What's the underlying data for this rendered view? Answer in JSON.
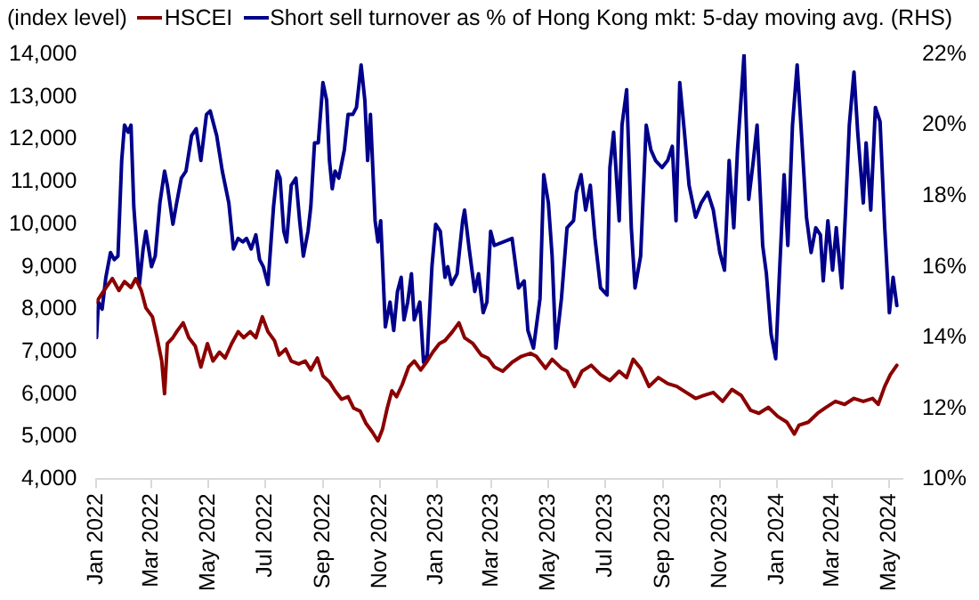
{
  "chart_data": {
    "type": "line",
    "ylabel": "(index level)",
    "legend": "top",
    "grid": false,
    "marker": "none",
    "line_style": "solid",
    "xlim": [
      "2022-01-01",
      "2024-05-15"
    ],
    "xticks": [
      {
        "value": "2022-01",
        "label": "Jan 2022"
      },
      {
        "value": "2022-03",
        "label": "Mar 2022"
      },
      {
        "value": "2022-05",
        "label": "May 2022"
      },
      {
        "value": "2022-07",
        "label": "Jul 2022"
      },
      {
        "value": "2022-09",
        "label": "Sep 2022"
      },
      {
        "value": "2022-11",
        "label": "Nov 2022"
      },
      {
        "value": "2023-01",
        "label": "Jan 2023"
      },
      {
        "value": "2023-03",
        "label": "Mar 2023"
      },
      {
        "value": "2023-05",
        "label": "May 2023"
      },
      {
        "value": "2023-07",
        "label": "Jul 2023"
      },
      {
        "value": "2023-09",
        "label": "Sep 2023"
      },
      {
        "value": "2023-11",
        "label": "Nov 2023"
      },
      {
        "value": "2024-01",
        "label": "Jan 2024"
      },
      {
        "value": "2024-03",
        "label": "Mar 2024"
      },
      {
        "value": "2024-05",
        "label": "May 2024"
      }
    ],
    "ylim": [
      4000,
      14000
    ],
    "yticks": [
      {
        "value": 4000,
        "label": "4,000"
      },
      {
        "value": 5000,
        "label": "5,000"
      },
      {
        "value": 6000,
        "label": "6,000"
      },
      {
        "value": 7000,
        "label": "7,000"
      },
      {
        "value": 8000,
        "label": "8,000"
      },
      {
        "value": 9000,
        "label": "9,000"
      },
      {
        "value": 10000,
        "label": "10,000"
      },
      {
        "value": 11000,
        "label": "11,000"
      },
      {
        "value": 12000,
        "label": "12,000"
      },
      {
        "value": 13000,
        "label": "13,000"
      },
      {
        "value": 14000,
        "label": "14,000"
      }
    ],
    "y2lim": [
      10,
      22
    ],
    "y2ticks": [
      {
        "value": 10,
        "label": "10%"
      },
      {
        "value": 12,
        "label": "12%"
      },
      {
        "value": 14,
        "label": "14%"
      },
      {
        "value": 16,
        "label": "16%"
      },
      {
        "value": 18,
        "label": "18%"
      },
      {
        "value": 20,
        "label": "20%"
      },
      {
        "value": 22,
        "label": "22%"
      }
    ],
    "series": [
      {
        "name": "HSCEI",
        "color": "#8b0000",
        "x": [
          "2022-01-01",
          "2022-01-09",
          "2022-01-18",
          "2022-01-25",
          "2022-01-31",
          "2022-02-07",
          "2022-02-12",
          "2022-02-18",
          "2022-02-23",
          "2022-03-02",
          "2022-03-07",
          "2022-03-12",
          "2022-03-15",
          "2022-03-18",
          "2022-03-24",
          "2022-03-28",
          "2022-04-04",
          "2022-04-10",
          "2022-04-17",
          "2022-04-23",
          "2022-04-30",
          "2022-05-06",
          "2022-05-13",
          "2022-05-19",
          "2022-05-26",
          "2022-06-02",
          "2022-06-08",
          "2022-06-15",
          "2022-06-21",
          "2022-06-28",
          "2022-07-04",
          "2022-07-11",
          "2022-07-16",
          "2022-07-23",
          "2022-07-29",
          "2022-08-06",
          "2022-08-13",
          "2022-08-19",
          "2022-08-26",
          "2022-09-01",
          "2022-09-08",
          "2022-09-14",
          "2022-09-21",
          "2022-09-28",
          "2022-10-04",
          "2022-10-11",
          "2022-10-17",
          "2022-10-24",
          "2022-10-30",
          "2022-11-04",
          "2022-11-09",
          "2022-11-14",
          "2022-11-19",
          "2022-11-25",
          "2022-12-02",
          "2022-12-08",
          "2022-12-15",
          "2022-12-22",
          "2022-12-28",
          "2023-01-04",
          "2023-01-10",
          "2023-01-18",
          "2023-01-25",
          "2023-01-31",
          "2023-02-09",
          "2023-02-18",
          "2023-02-25",
          "2023-03-04",
          "2023-03-13",
          "2023-03-23",
          "2023-04-02",
          "2023-04-12",
          "2023-04-18",
          "2023-04-28",
          "2023-05-05",
          "2023-05-15",
          "2023-05-21",
          "2023-05-29",
          "2023-06-06",
          "2023-06-16",
          "2023-06-26",
          "2023-07-06",
          "2023-07-16",
          "2023-07-24",
          "2023-07-31",
          "2023-08-08",
          "2023-08-17",
          "2023-08-27",
          "2023-09-06",
          "2023-09-16",
          "2023-09-26",
          "2023-10-06",
          "2023-10-15",
          "2023-10-25",
          "2023-11-04",
          "2023-11-14",
          "2023-11-24",
          "2023-12-04",
          "2023-12-13",
          "2023-12-23",
          "2024-01-02",
          "2024-01-12",
          "2024-01-20",
          "2024-01-25",
          "2024-02-04",
          "2024-02-14",
          "2024-02-23",
          "2024-03-04",
          "2024-03-14",
          "2024-03-24",
          "2024-04-03",
          "2024-04-13",
          "2024-04-19",
          "2024-04-26",
          "2024-05-02",
          "2024-05-09"
        ],
        "values": [
          8170,
          8440,
          8720,
          8440,
          8650,
          8510,
          8720,
          8440,
          8030,
          7820,
          7330,
          6780,
          6010,
          7190,
          7330,
          7470,
          7680,
          7330,
          7130,
          6640,
          7190,
          6780,
          6990,
          6850,
          7190,
          7470,
          7330,
          7470,
          7330,
          7820,
          7470,
          7260,
          6920,
          7060,
          6780,
          6710,
          6780,
          6570,
          6850,
          6430,
          6290,
          6080,
          5880,
          5940,
          5670,
          5600,
          5320,
          5110,
          4900,
          5180,
          5670,
          6080,
          5940,
          6220,
          6640,
          6780,
          6570,
          6780,
          6990,
          7190,
          7260,
          7470,
          7680,
          7330,
          7190,
          6920,
          6850,
          6640,
          6540,
          6750,
          6890,
          6960,
          6890,
          6610,
          6820,
          6610,
          6540,
          6180,
          6540,
          6680,
          6460,
          6320,
          6540,
          6390,
          6820,
          6610,
          6180,
          6390,
          6250,
          6180,
          6040,
          5900,
          5970,
          6040,
          5830,
          6110,
          5970,
          5620,
          5550,
          5690,
          5480,
          5340,
          5060,
          5270,
          5340,
          5550,
          5690,
          5830,
          5760,
          5900,
          5830,
          5900,
          5760,
          6180,
          6460,
          6680
        ]
      },
      {
        "name": "Short sell turnover as % of Hong Kong mkt: 5-day moving avg. (RHS)",
        "color": "#00008b",
        "axis": "y2",
        "x": [
          "2022-01-01",
          "2022-01-03",
          "2022-01-07",
          "2022-01-11",
          "2022-01-16",
          "2022-01-20",
          "2022-01-24",
          "2022-01-28",
          "2022-01-31",
          "2022-02-04",
          "2022-02-07",
          "2022-02-10",
          "2022-02-16",
          "2022-02-20",
          "2022-02-23",
          "2022-03-01",
          "2022-03-05",
          "2022-03-10",
          "2022-03-15",
          "2022-03-18",
          "2022-03-24",
          "2022-03-28",
          "2022-04-02",
          "2022-04-07",
          "2022-04-13",
          "2022-04-18",
          "2022-04-23",
          "2022-04-29",
          "2022-05-03",
          "2022-05-10",
          "2022-05-16",
          "2022-05-23",
          "2022-05-28",
          "2022-06-02",
          "2022-06-07",
          "2022-06-11",
          "2022-06-16",
          "2022-06-21",
          "2022-06-25",
          "2022-06-29",
          "2022-07-04",
          "2022-07-10",
          "2022-07-14",
          "2022-07-17",
          "2022-07-21",
          "2022-07-24",
          "2022-07-29",
          "2022-08-03",
          "2022-08-07",
          "2022-08-11",
          "2022-08-16",
          "2022-08-19",
          "2022-08-23",
          "2022-08-27",
          "2022-09-01",
          "2022-09-05",
          "2022-09-08",
          "2022-09-11",
          "2022-09-14",
          "2022-09-18",
          "2022-09-24",
          "2022-09-28",
          "2022-10-03",
          "2022-10-07",
          "2022-10-12",
          "2022-10-16",
          "2022-10-19",
          "2022-10-22",
          "2022-10-27",
          "2022-10-30",
          "2022-11-02",
          "2022-11-07",
          "2022-11-12",
          "2022-11-16",
          "2022-11-20",
          "2022-11-24",
          "2022-11-27",
          "2022-12-01",
          "2022-12-05",
          "2022-12-08",
          "2022-12-14",
          "2022-12-18",
          "2022-12-22",
          "2022-12-27",
          "2022-12-31",
          "2023-01-05",
          "2023-01-10",
          "2023-01-13",
          "2023-01-17",
          "2023-01-23",
          "2023-01-29",
          "2023-01-31",
          "2023-02-05",
          "2023-02-11",
          "2023-02-15",
          "2023-02-20",
          "2023-02-24",
          "2023-02-28",
          "2023-03-04",
          "2023-03-23",
          "2023-03-30",
          "2023-04-05",
          "2023-04-09",
          "2023-04-15",
          "2023-04-22",
          "2023-04-26",
          "2023-05-01",
          "2023-05-05",
          "2023-05-09",
          "2023-05-15",
          "2023-05-21",
          "2023-05-28",
          "2023-05-31",
          "2023-06-05",
          "2023-06-10",
          "2023-06-15",
          "2023-06-20",
          "2023-06-26",
          "2023-07-03",
          "2023-07-06",
          "2023-07-10",
          "2023-07-16",
          "2023-07-19",
          "2023-07-24",
          "2023-07-29",
          "2023-08-02",
          "2023-08-08",
          "2023-08-14",
          "2023-08-19",
          "2023-08-24",
          "2023-08-31",
          "2023-09-06",
          "2023-09-11",
          "2023-09-15",
          "2023-09-19",
          "2023-09-24",
          "2023-09-29",
          "2023-10-06",
          "2023-10-12",
          "2023-10-19",
          "2023-10-25",
          "2023-11-01",
          "2023-11-06",
          "2023-11-11",
          "2023-11-16",
          "2023-11-20",
          "2023-11-25",
          "2023-11-27",
          "2023-12-02",
          "2023-12-07",
          "2023-12-11",
          "2023-12-17",
          "2023-12-21",
          "2023-12-26",
          "2023-12-31",
          "2024-01-04",
          "2024-01-09",
          "2024-01-13",
          "2024-01-18",
          "2024-01-23",
          "2024-01-28",
          "2024-02-02",
          "2024-02-07",
          "2024-02-12",
          "2024-02-17",
          "2024-02-20",
          "2024-02-25",
          "2024-03-01",
          "2024-03-05",
          "2024-03-11",
          "2024-03-15",
          "2024-03-19",
          "2024-03-24",
          "2024-03-28",
          "2024-04-03",
          "2024-04-06",
          "2024-04-11",
          "2024-04-16",
          "2024-04-21",
          "2024-04-26",
          "2024-05-01",
          "2024-05-05",
          "2024-05-09"
        ],
        "values": [
          14.0,
          15.0,
          14.8,
          15.7,
          16.4,
          16.2,
          16.3,
          19.0,
          20.0,
          19.8,
          20.0,
          17.7,
          15.5,
          16.5,
          17.0,
          16.0,
          16.3,
          17.8,
          18.7,
          18.3,
          17.2,
          17.8,
          18.5,
          18.7,
          19.7,
          19.9,
          19.0,
          20.3,
          20.4,
          19.7,
          18.7,
          17.8,
          16.5,
          16.8,
          16.7,
          16.8,
          16.5,
          16.9,
          16.2,
          16.0,
          15.5,
          17.7,
          18.7,
          18.5,
          17.0,
          16.7,
          18.3,
          18.5,
          17.3,
          16.3,
          17.0,
          17.7,
          19.5,
          19.5,
          21.2,
          20.7,
          19.0,
          18.2,
          18.7,
          18.5,
          19.3,
          20.3,
          20.3,
          20.5,
          21.7,
          20.7,
          19.0,
          20.3,
          17.3,
          16.7,
          17.3,
          14.3,
          15.0,
          14.2,
          15.3,
          15.7,
          14.5,
          15.0,
          15.8,
          14.5,
          15.0,
          13.3,
          13.5,
          16.0,
          17.2,
          17.0,
          15.7,
          16.0,
          15.5,
          15.8,
          17.3,
          17.6,
          16.5,
          15.3,
          15.8,
          14.7,
          15.0,
          17.0,
          16.6,
          16.8,
          15.4,
          15.6,
          14.2,
          13.7,
          15.1,
          18.6,
          17.8,
          16.3,
          13.7,
          15.1,
          17.1,
          17.3,
          18.1,
          18.6,
          17.6,
          18.3,
          16.8,
          15.4,
          15.2,
          18.8,
          19.8,
          17.3,
          20.0,
          21.0,
          17.1,
          15.4,
          16.3,
          20.0,
          19.3,
          19.0,
          18.8,
          19.0,
          19.4,
          17.3,
          21.2,
          19.8,
          18.3,
          17.4,
          17.8,
          18.1,
          17.6,
          16.4,
          15.9,
          19.0,
          17.1,
          19.3,
          21.2,
          22.0,
          17.9,
          19.0,
          20.0,
          16.6,
          15.8,
          14.1,
          13.4,
          15.8,
          18.6,
          16.6,
          20.0,
          21.7,
          19.6,
          17.4,
          16.4,
          17.1,
          16.9,
          15.6,
          17.3,
          15.9,
          17.1,
          15.4,
          17.6,
          20.0,
          21.5,
          19.8,
          17.8,
          19.5,
          17.6,
          20.5,
          20.1,
          17.1,
          14.7,
          15.7,
          14.9
        ]
      }
    ]
  }
}
